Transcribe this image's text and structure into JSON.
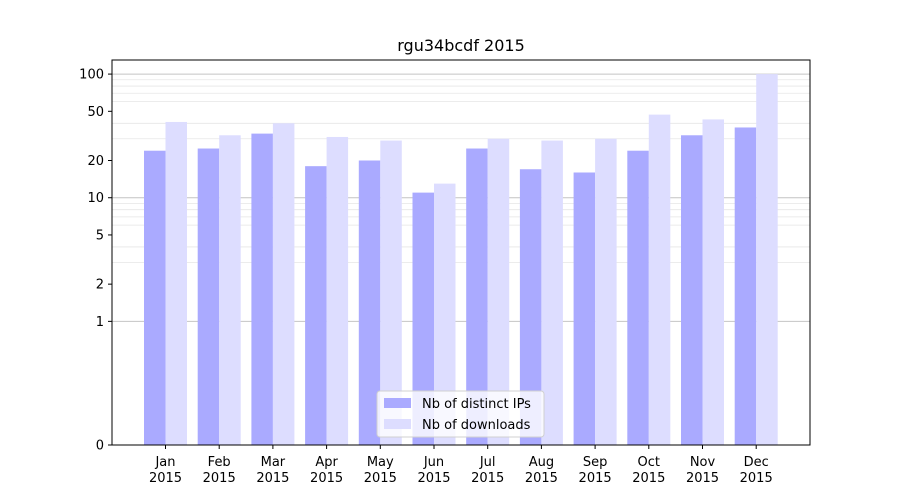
{
  "chart_data": {
    "type": "bar",
    "title": "rgu34bcdf 2015",
    "xlabel": "",
    "ylabel": "",
    "yscale": "symlog",
    "ylim": [
      0,
      130
    ],
    "grid": true,
    "legend_position": "lower-center",
    "categories": [
      [
        "Jan",
        "2015"
      ],
      [
        "Feb",
        "2015"
      ],
      [
        "Mar",
        "2015"
      ],
      [
        "Apr",
        "2015"
      ],
      [
        "May",
        "2015"
      ],
      [
        "Jun",
        "2015"
      ],
      [
        "Jul",
        "2015"
      ],
      [
        "Aug",
        "2015"
      ],
      [
        "Sep",
        "2015"
      ],
      [
        "Oct",
        "2015"
      ],
      [
        "Nov",
        "2015"
      ],
      [
        "Dec",
        "2015"
      ]
    ],
    "y_ticks": [
      0,
      1,
      2,
      5,
      10,
      20,
      50,
      100
    ],
    "series": [
      {
        "name": "Nb of distinct IPs",
        "color": "#aaaaff",
        "values": [
          24,
          25,
          33,
          18,
          20,
          11,
          25,
          17,
          16,
          24,
          32,
          37
        ]
      },
      {
        "name": "Nb of downloads",
        "color": "#ddddff",
        "values": [
          41,
          32,
          40,
          31,
          29,
          13,
          30,
          29,
          30,
          47,
          43,
          100
        ]
      }
    ]
  }
}
